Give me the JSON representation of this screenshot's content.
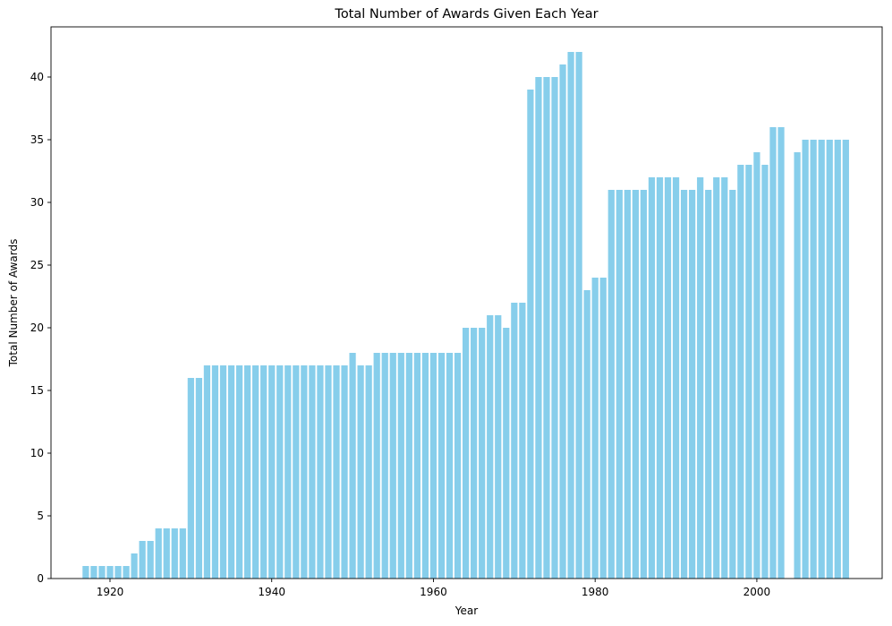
{
  "chart_data": {
    "type": "bar",
    "title": "Total Number of Awards Given Each Year",
    "xlabel": "Year",
    "ylabel": "Total Number of Awards",
    "xlim": [
      1912.7,
      2015.5
    ],
    "ylim": [
      0,
      44
    ],
    "x_ticks": [
      1920,
      1940,
      1960,
      1980,
      2000
    ],
    "y_ticks": [
      0,
      5,
      10,
      15,
      20,
      25,
      30,
      35,
      40
    ],
    "grid": false,
    "bar_color": "#87CEEB",
    "x": [
      1917,
      1918,
      1919,
      1920,
      1921,
      1922,
      1923,
      1924,
      1925,
      1926,
      1927,
      1928,
      1929,
      1930,
      1931,
      1932,
      1933,
      1934,
      1935,
      1936,
      1937,
      1938,
      1939,
      1940,
      1941,
      1942,
      1943,
      1944,
      1945,
      1946,
      1947,
      1948,
      1949,
      1950,
      1951,
      1952,
      1953,
      1954,
      1955,
      1956,
      1957,
      1958,
      1959,
      1960,
      1961,
      1962,
      1963,
      1964,
      1965,
      1966,
      1967,
      1968,
      1969,
      1970,
      1971,
      1972,
      1973,
      1974,
      1975,
      1976,
      1977,
      1978,
      1979,
      1980,
      1981,
      1982,
      1983,
      1984,
      1985,
      1986,
      1987,
      1988,
      1989,
      1990,
      1991,
      1992,
      1993,
      1994,
      1995,
      1996,
      1997,
      1998,
      1999,
      2000,
      2001,
      2002,
      2003,
      2005,
      2006,
      2007,
      2008,
      2009,
      2010,
      2011
    ],
    "values": [
      1,
      1,
      1,
      1,
      1,
      1,
      2,
      3,
      3,
      4,
      4,
      4,
      4,
      16,
      16,
      17,
      17,
      17,
      17,
      17,
      17,
      17,
      17,
      17,
      17,
      17,
      17,
      17,
      17,
      17,
      17,
      17,
      17,
      18,
      17,
      17,
      18,
      18,
      18,
      18,
      18,
      18,
      18,
      18,
      18,
      18,
      18,
      20,
      20,
      20,
      21,
      21,
      20,
      22,
      22,
      39,
      40,
      40,
      40,
      41,
      42,
      42,
      23,
      24,
      24,
      31,
      31,
      31,
      31,
      31,
      32,
      32,
      32,
      32,
      31,
      31,
      32,
      31,
      32,
      32,
      31,
      33,
      33,
      34,
      33,
      36,
      36,
      34,
      35,
      35,
      35,
      35,
      35,
      35
    ]
  }
}
